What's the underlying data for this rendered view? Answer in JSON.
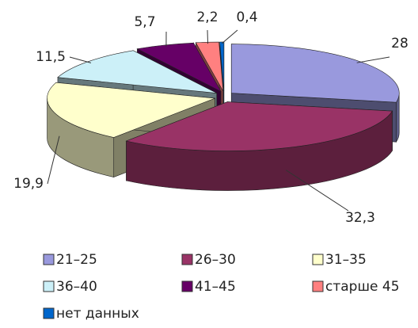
{
  "chart_data": {
    "type": "pie",
    "categories": [
      "21–25",
      "26–30",
      "31–35",
      "36–40",
      "41–45",
      "старше 45",
      "нет данных"
    ],
    "values": [
      28,
      32.3,
      19.9,
      11.5,
      5.7,
      2.2,
      0.4
    ],
    "value_labels": [
      "28",
      "32,3",
      "19,9",
      "11,5",
      "5,7",
      "2,2",
      "0,4"
    ],
    "colors": [
      "#9999dd",
      "#993366",
      "#ffffcc",
      "#ccf0f8",
      "#660066",
      "#ff8080",
      "#0066cc"
    ]
  }
}
